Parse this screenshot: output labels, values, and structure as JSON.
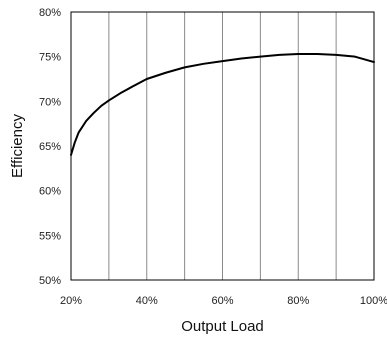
{
  "chart_data": {
    "type": "line",
    "title": "",
    "xlabel": "Output Load",
    "ylabel": "Efficiency",
    "xlim": [
      20,
      100
    ],
    "ylim": [
      50,
      80
    ],
    "x_unit": "%",
    "y_unit": "%",
    "x_ticks": [
      20,
      30,
      40,
      50,
      60,
      70,
      80,
      90,
      100
    ],
    "x_tick_labels": [
      "20%",
      "",
      "40%",
      "",
      "60%",
      "",
      "80%",
      "",
      "100%"
    ],
    "y_ticks": [
      50,
      55,
      60,
      65,
      70,
      75,
      80
    ],
    "y_tick_labels": [
      "50%",
      "55%",
      "60%",
      "65%",
      "70%",
      "75%",
      "80%"
    ],
    "grid": "vertical",
    "series": [
      {
        "color": "#000000",
        "x": [
          20,
          21,
          22,
          24,
          26,
          28,
          30,
          33,
          36,
          40,
          45,
          50,
          55,
          60,
          65,
          70,
          75,
          80,
          85,
          90,
          95,
          100
        ],
        "y": [
          64.0,
          65.4,
          66.5,
          67.8,
          68.7,
          69.5,
          70.1,
          70.9,
          71.6,
          72.5,
          73.2,
          73.8,
          74.2,
          74.5,
          74.8,
          75.0,
          75.2,
          75.3,
          75.3,
          75.2,
          75.0,
          74.4
        ]
      }
    ]
  }
}
